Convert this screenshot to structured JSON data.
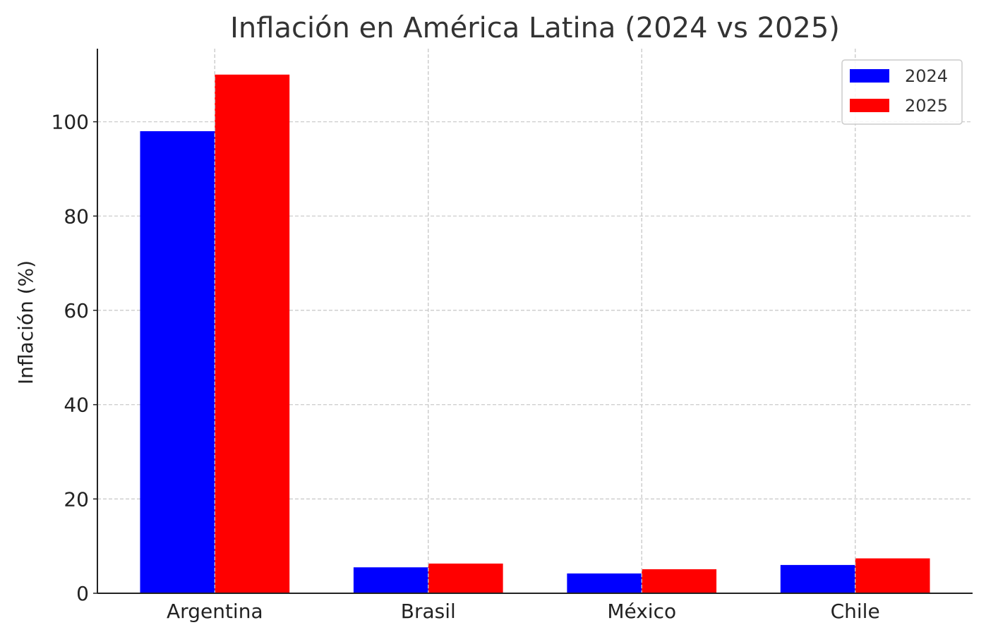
{
  "chart_data": {
    "type": "bar",
    "title": "Inflación en América Latina (2024 vs 2025)",
    "xlabel": "",
    "ylabel": "Inflación (%)",
    "categories": [
      "Argentina",
      "Brasil",
      "México",
      "Chile"
    ],
    "series": [
      {
        "name": "2024",
        "color": "#0000ff",
        "values": [
          98,
          5.5,
          4.2,
          6.0
        ]
      },
      {
        "name": "2025",
        "color": "#ff0000",
        "values": [
          110,
          6.3,
          5.1,
          7.4
        ]
      }
    ],
    "ylim": [
      0,
      115.5
    ],
    "yticks": [
      "0",
      "20",
      "40",
      "60",
      "80",
      "100"
    ],
    "grid": true,
    "legend_position": "top-right"
  }
}
